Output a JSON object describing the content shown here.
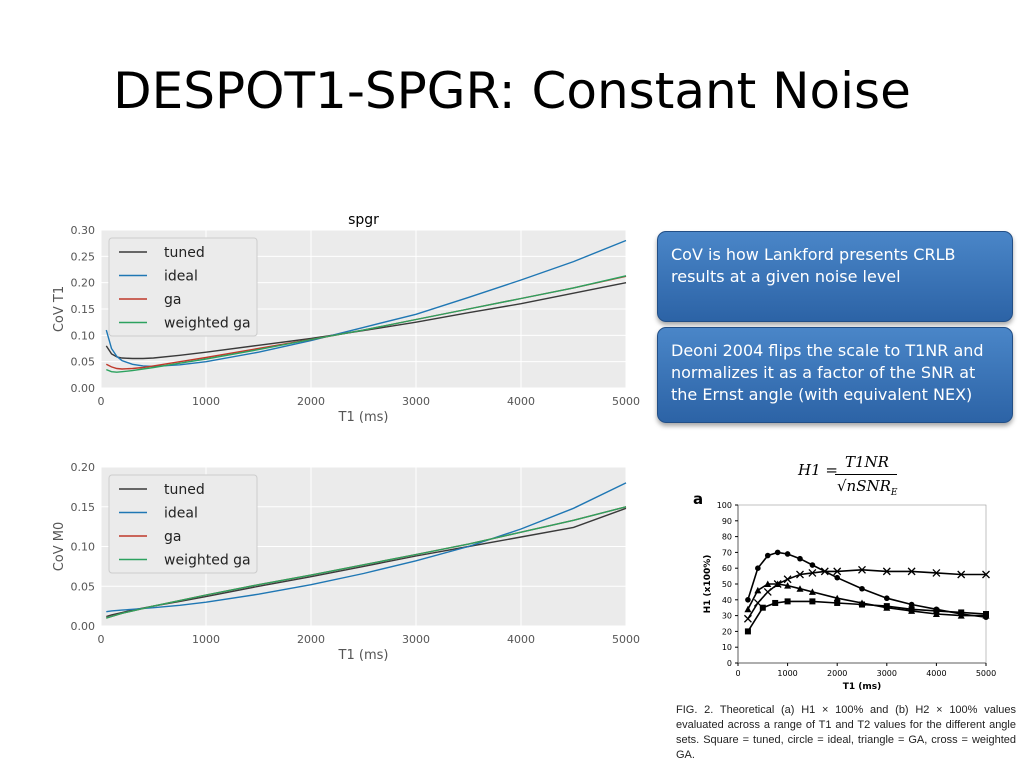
{
  "slide": {
    "title": "DESPOT1-SPGR: Constant Noise"
  },
  "callouts": [
    {
      "text": "CoV is how Lankford presents CRLB results at a given noise level"
    },
    {
      "text": "Deoni 2004 flips the scale to T1NR and normalizes it as a factor of the SNR at the Ernst angle (with equivalent NEX)"
    }
  ],
  "formula": {
    "lhs": "H1 =",
    "numerator": "T1NR",
    "denominator_prefix": "√nSNR",
    "denominator_sub": "E"
  },
  "figure": {
    "panel_label": "a",
    "caption": "FIG. 2. Theoretical (a) H1 × 100% and (b) H2 × 100% values evaluated across a range of T1 and T2 values for the different angle sets. Square = tuned, circle = ideal, triangle = GA, cross = weighted GA."
  },
  "colors": {
    "tuned": "#3a3a3a",
    "ideal": "#1f77b4",
    "ga": "#c0392b",
    "weighted_ga": "#2ca25f",
    "plot_bg": "#ebebeb",
    "grid": "#ffffff",
    "callout": "#3a75bd"
  },
  "chart_data": [
    {
      "type": "line",
      "title": "spgr",
      "xlabel": "T1 (ms)",
      "ylabel": "CoV T1",
      "xlim": [
        0,
        5000
      ],
      "ylim": [
        0,
        0.3
      ],
      "xticks": [
        0,
        1000,
        2000,
        3000,
        4000,
        5000
      ],
      "yticks": [
        0.0,
        0.05,
        0.1,
        0.15,
        0.2,
        0.25,
        0.3
      ],
      "ytick_decimals": 2,
      "grid": true,
      "legend": "upper-left",
      "x": [
        50,
        100,
        150,
        200,
        300,
        400,
        500,
        750,
        1000,
        1500,
        2000,
        2500,
        3000,
        3500,
        4000,
        4500,
        5000
      ],
      "series": [
        {
          "name": "tuned",
          "color": "#3a3a3a",
          "values": [
            0.08,
            0.065,
            0.059,
            0.057,
            0.056,
            0.056,
            0.057,
            0.062,
            0.068,
            0.081,
            0.094,
            0.109,
            0.125,
            0.143,
            0.16,
            0.18,
            0.2
          ]
        },
        {
          "name": "ideal",
          "color": "#1f77b4",
          "values": [
            0.11,
            0.075,
            0.06,
            0.052,
            0.045,
            0.042,
            0.041,
            0.044,
            0.05,
            0.068,
            0.09,
            0.115,
            0.14,
            0.172,
            0.205,
            0.24,
            0.28
          ]
        },
        {
          "name": "ga",
          "color": "#c0392b",
          "values": [
            0.045,
            0.04,
            0.037,
            0.036,
            0.037,
            0.039,
            0.042,
            0.05,
            0.058,
            0.075,
            0.092,
            0.11,
            0.13,
            0.15,
            0.17,
            0.19,
            0.212
          ]
        },
        {
          "name": "weighted ga",
          "color": "#2ca25f",
          "values": [
            0.035,
            0.031,
            0.03,
            0.031,
            0.033,
            0.036,
            0.039,
            0.047,
            0.055,
            0.073,
            0.092,
            0.11,
            0.13,
            0.15,
            0.17,
            0.19,
            0.213
          ]
        }
      ]
    },
    {
      "type": "line",
      "title": "",
      "xlabel": "T1 (ms)",
      "ylabel": "CoV M0",
      "xlim": [
        0,
        5000
      ],
      "ylim": [
        0,
        0.2
      ],
      "xticks": [
        0,
        1000,
        2000,
        3000,
        4000,
        5000
      ],
      "yticks": [
        0.0,
        0.05,
        0.1,
        0.15,
        0.2
      ],
      "ytick_decimals": 2,
      "grid": true,
      "legend": "upper-left",
      "x": [
        50,
        100,
        200,
        300,
        500,
        750,
        1000,
        1500,
        2000,
        2500,
        3000,
        3500,
        4000,
        4500,
        5000
      ],
      "series": [
        {
          "name": "tuned",
          "color": "#3a3a3a",
          "values": [
            0.012,
            0.014,
            0.017,
            0.02,
            0.025,
            0.031,
            0.037,
            0.05,
            0.062,
            0.075,
            0.088,
            0.1,
            0.112,
            0.124,
            0.148
          ]
        },
        {
          "name": "ideal",
          "color": "#1f77b4",
          "values": [
            0.018,
            0.019,
            0.02,
            0.021,
            0.023,
            0.026,
            0.03,
            0.04,
            0.052,
            0.066,
            0.082,
            0.1,
            0.122,
            0.148,
            0.18
          ]
        },
        {
          "name": "ga",
          "color": "#c0392b",
          "values": [
            0.01,
            0.012,
            0.016,
            0.019,
            0.025,
            0.032,
            0.039,
            0.052,
            0.064,
            0.077,
            0.09,
            0.103,
            0.118,
            0.133,
            0.15
          ]
        },
        {
          "name": "weighted ga",
          "color": "#2ca25f",
          "values": [
            0.01,
            0.012,
            0.016,
            0.019,
            0.025,
            0.032,
            0.039,
            0.052,
            0.064,
            0.077,
            0.09,
            0.103,
            0.118,
            0.133,
            0.15
          ]
        }
      ]
    },
    {
      "type": "line",
      "title": "",
      "xlabel": "T1 (ms)",
      "ylabel": "H1 (x100%)",
      "xlim": [
        0,
        5000
      ],
      "ylim": [
        0,
        100
      ],
      "xticks": [
        0,
        1000,
        2000,
        3000,
        4000,
        5000
      ],
      "yticks": [
        0,
        10,
        20,
        30,
        40,
        50,
        60,
        70,
        80,
        90,
        100
      ],
      "ytick_decimals": 0,
      "grid": false,
      "legend": "none",
      "series": [
        {
          "name": "tuned",
          "marker": "square",
          "color": "#000000",
          "x": [
            200,
            500,
            750,
            1000,
            1500,
            2000,
            2500,
            3000,
            3500,
            4000,
            4500,
            5000
          ],
          "values": [
            20,
            35,
            38,
            39,
            39,
            38,
            37,
            36,
            34,
            33,
            32,
            31
          ]
        },
        {
          "name": "ideal",
          "marker": "circle",
          "color": "#000000",
          "x": [
            200,
            400,
            600,
            800,
            1000,
            1250,
            1500,
            2000,
            2500,
            3000,
            3500,
            4000,
            4500,
            5000
          ],
          "values": [
            40,
            60,
            68,
            70,
            69,
            66,
            62,
            54,
            47,
            41,
            37,
            34,
            31,
            29
          ]
        },
        {
          "name": "GA",
          "marker": "triangle",
          "color": "#000000",
          "x": [
            200,
            400,
            600,
            800,
            1000,
            1250,
            1500,
            2000,
            2500,
            3000,
            3500,
            4000,
            4500,
            5000
          ],
          "values": [
            34,
            46,
            50,
            50,
            49,
            47,
            45,
            41,
            38,
            35,
            33,
            31,
            30,
            30
          ]
        },
        {
          "name": "weighted GA",
          "marker": "cross",
          "color": "#000000",
          "x": [
            200,
            400,
            600,
            800,
            1000,
            1250,
            1500,
            1750,
            2000,
            2500,
            3000,
            3500,
            4000,
            4500,
            5000
          ],
          "values": [
            28,
            38,
            45,
            50,
            53,
            56,
            57,
            58,
            58,
            59,
            58,
            58,
            57,
            56,
            56
          ]
        }
      ]
    }
  ]
}
